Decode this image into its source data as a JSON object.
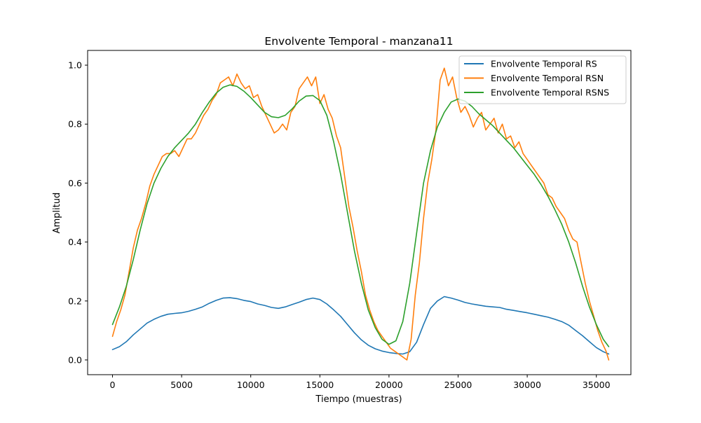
{
  "chart_data": {
    "type": "line",
    "title": "Envolvente Temporal - manzana11",
    "xlabel": "Tiempo (muestras)",
    "ylabel": "Amplitud",
    "xlim": [
      -1800,
      37500
    ],
    "ylim": [
      -0.05,
      1.05
    ],
    "xticks": [
      0,
      5000,
      10000,
      15000,
      20000,
      25000,
      30000,
      35000
    ],
    "xtick_labels": [
      "0",
      "5000",
      "10000",
      "15000",
      "20000",
      "25000",
      "30000",
      "35000"
    ],
    "yticks": [
      0.0,
      0.2,
      0.4,
      0.6,
      0.8,
      1.0
    ],
    "ytick_labels": [
      "0.0",
      "0.2",
      "0.4",
      "0.6",
      "0.8",
      "1.0"
    ],
    "grid": false,
    "legend_position": "top-right",
    "series": [
      {
        "name": "Envolvente Temporal RS",
        "color": "#1f77b4",
        "x": [
          0,
          500,
          1000,
          1500,
          2000,
          2500,
          3000,
          3500,
          4000,
          4500,
          5000,
          5500,
          6000,
          6500,
          7000,
          7500,
          8000,
          8500,
          9000,
          9500,
          10000,
          10500,
          11000,
          11500,
          12000,
          12500,
          13000,
          13500,
          14000,
          14500,
          15000,
          15500,
          16000,
          16500,
          17000,
          17500,
          18000,
          18500,
          19000,
          19500,
          20000,
          20500,
          21000,
          21500,
          22000,
          22500,
          23000,
          23500,
          24000,
          24500,
          25000,
          25500,
          26000,
          26500,
          27000,
          27500,
          28000,
          28500,
          29000,
          29500,
          30000,
          30500,
          31000,
          31500,
          32000,
          32500,
          33000,
          33500,
          34000,
          34500,
          35000,
          35500,
          35900
        ],
        "values": [
          0.035,
          0.045,
          0.062,
          0.085,
          0.105,
          0.125,
          0.138,
          0.148,
          0.155,
          0.158,
          0.16,
          0.165,
          0.172,
          0.18,
          0.192,
          0.202,
          0.21,
          0.211,
          0.208,
          0.202,
          0.198,
          0.19,
          0.185,
          0.178,
          0.175,
          0.18,
          0.188,
          0.196,
          0.205,
          0.21,
          0.205,
          0.19,
          0.17,
          0.148,
          0.12,
          0.092,
          0.068,
          0.05,
          0.038,
          0.03,
          0.025,
          0.022,
          0.02,
          0.028,
          0.06,
          0.12,
          0.175,
          0.2,
          0.215,
          0.21,
          0.203,
          0.195,
          0.19,
          0.186,
          0.182,
          0.18,
          0.178,
          0.172,
          0.168,
          0.164,
          0.16,
          0.155,
          0.15,
          0.145,
          0.138,
          0.13,
          0.118,
          0.1,
          0.082,
          0.062,
          0.042,
          0.028,
          0.02
        ]
      },
      {
        "name": "Envolvente Temporal RSN",
        "color": "#ff7f0e",
        "x": [
          0,
          300,
          600,
          900,
          1200,
          1500,
          1800,
          2100,
          2400,
          2700,
          3000,
          3300,
          3600,
          3900,
          4200,
          4500,
          4800,
          5100,
          5400,
          5700,
          6000,
          6300,
          6600,
          6900,
          7200,
          7500,
          7800,
          8100,
          8400,
          8700,
          9000,
          9300,
          9600,
          9900,
          10200,
          10500,
          10800,
          11100,
          11400,
          11700,
          12000,
          12300,
          12600,
          12900,
          13200,
          13500,
          13800,
          14100,
          14400,
          14700,
          15000,
          15300,
          15600,
          15900,
          16200,
          16500,
          16800,
          17100,
          17400,
          17700,
          18000,
          18300,
          18600,
          18900,
          19200,
          19500,
          19800,
          20100,
          20400,
          20700,
          21000,
          21300,
          21600,
          21900,
          22200,
          22500,
          22800,
          23100,
          23400,
          23700,
          24000,
          24300,
          24600,
          24900,
          25200,
          25500,
          25800,
          26100,
          26400,
          26700,
          27000,
          27300,
          27600,
          27900,
          28200,
          28500,
          28800,
          29100,
          29400,
          29700,
          30000,
          30300,
          30600,
          30900,
          31200,
          31500,
          31800,
          32100,
          32400,
          32700,
          33000,
          33300,
          33600,
          33900,
          34200,
          34500,
          34800,
          35100,
          35400,
          35700,
          35900
        ],
        "values": [
          0.08,
          0.13,
          0.17,
          0.22,
          0.3,
          0.38,
          0.44,
          0.48,
          0.53,
          0.59,
          0.63,
          0.66,
          0.69,
          0.7,
          0.7,
          0.71,
          0.69,
          0.72,
          0.75,
          0.75,
          0.77,
          0.8,
          0.83,
          0.85,
          0.88,
          0.9,
          0.94,
          0.95,
          0.96,
          0.93,
          0.97,
          0.94,
          0.92,
          0.93,
          0.89,
          0.9,
          0.86,
          0.83,
          0.8,
          0.77,
          0.78,
          0.8,
          0.78,
          0.84,
          0.86,
          0.92,
          0.94,
          0.96,
          0.93,
          0.96,
          0.87,
          0.9,
          0.85,
          0.82,
          0.76,
          0.72,
          0.62,
          0.52,
          0.45,
          0.37,
          0.3,
          0.22,
          0.17,
          0.13,
          0.1,
          0.08,
          0.06,
          0.04,
          0.03,
          0.02,
          0.01,
          0.0,
          0.07,
          0.22,
          0.33,
          0.48,
          0.6,
          0.68,
          0.78,
          0.95,
          0.99,
          0.93,
          0.96,
          0.89,
          0.84,
          0.86,
          0.83,
          0.79,
          0.82,
          0.84,
          0.78,
          0.8,
          0.82,
          0.77,
          0.8,
          0.75,
          0.76,
          0.72,
          0.74,
          0.7,
          0.68,
          0.66,
          0.64,
          0.62,
          0.6,
          0.56,
          0.55,
          0.52,
          0.5,
          0.48,
          0.44,
          0.41,
          0.4,
          0.33,
          0.26,
          0.2,
          0.15,
          0.1,
          0.06,
          0.03,
          0.0
        ]
      },
      {
        "name": "Envolvente Temporal RSNS",
        "color": "#2ca02c",
        "x": [
          0,
          500,
          1000,
          1500,
          2000,
          2500,
          3000,
          3500,
          4000,
          4500,
          5000,
          5500,
          6000,
          6500,
          7000,
          7500,
          8000,
          8500,
          9000,
          9500,
          10000,
          10500,
          11000,
          11500,
          12000,
          12500,
          13000,
          13500,
          14000,
          14500,
          15000,
          15500,
          16000,
          16500,
          17000,
          17500,
          18000,
          18500,
          19000,
          19500,
          20000,
          20500,
          21000,
          21500,
          22000,
          22500,
          23000,
          23500,
          24000,
          24500,
          25000,
          25500,
          26000,
          26500,
          27000,
          27500,
          28000,
          28500,
          29000,
          29500,
          30000,
          30500,
          31000,
          31500,
          32000,
          32500,
          33000,
          33500,
          34000,
          34500,
          35000,
          35500,
          35900
        ],
        "values": [
          0.12,
          0.18,
          0.25,
          0.34,
          0.44,
          0.53,
          0.6,
          0.65,
          0.69,
          0.72,
          0.745,
          0.77,
          0.8,
          0.84,
          0.875,
          0.905,
          0.925,
          0.933,
          0.928,
          0.912,
          0.89,
          0.865,
          0.84,
          0.825,
          0.822,
          0.83,
          0.852,
          0.878,
          0.895,
          0.897,
          0.88,
          0.83,
          0.74,
          0.63,
          0.5,
          0.37,
          0.26,
          0.17,
          0.11,
          0.07,
          0.053,
          0.065,
          0.13,
          0.26,
          0.43,
          0.6,
          0.71,
          0.79,
          0.84,
          0.875,
          0.885,
          0.878,
          0.86,
          0.835,
          0.815,
          0.795,
          0.77,
          0.745,
          0.72,
          0.69,
          0.66,
          0.63,
          0.595,
          0.555,
          0.51,
          0.46,
          0.4,
          0.33,
          0.25,
          0.18,
          0.12,
          0.07,
          0.045
        ]
      }
    ]
  }
}
